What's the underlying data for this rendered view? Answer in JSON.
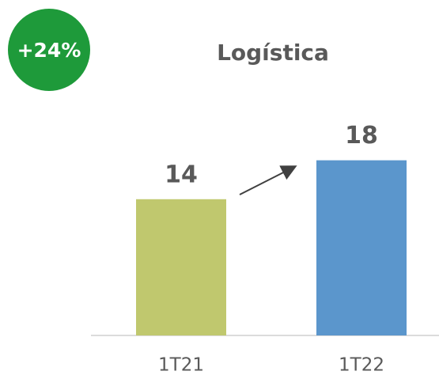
{
  "chart_data": {
    "type": "bar",
    "title": "Logística",
    "annotation": "+24%",
    "categories": [
      "1T21",
      "1T22"
    ],
    "values": [
      14,
      18
    ],
    "colors": [
      "#c0c86e",
      "#5b96cc"
    ],
    "badge_color": "#1e9a3a"
  }
}
